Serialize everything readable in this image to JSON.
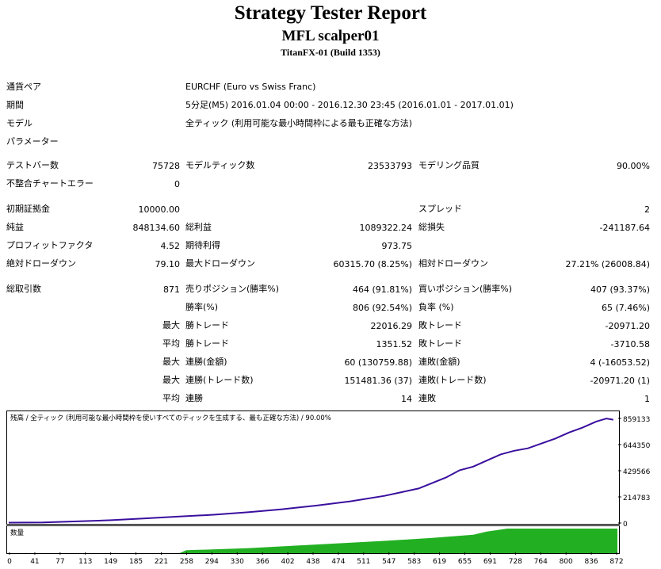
{
  "header": {
    "title": "Strategy Tester Report",
    "ea_name": "MFL scalper01",
    "broker": "TitanFX-01 (Build 1353)"
  },
  "info": {
    "symbol_label": "通貨ペア",
    "symbol_value": "EURCHF (Euro vs Swiss Franc)",
    "period_label": "期間",
    "period_value": "5分足(M5) 2016.01.04 00:00 - 2016.12.30 23:45 (2016.01.01 - 2017.01.01)",
    "model_label": "モデル",
    "model_value": "全ティック (利用可能な最小時間枠による最も正確な方法)",
    "params_label": "パラメーター"
  },
  "stats": {
    "bars_label": "テストバー数",
    "bars_value": "75728",
    "ticks_label": "モデルティック数",
    "ticks_value": "23533793",
    "quality_label": "モデリング品質",
    "quality_value": "90.00%",
    "mismatch_label": "不整合チャートエラー",
    "mismatch_value": "0",
    "deposit_label": "初期証拠金",
    "deposit_value": "10000.00",
    "spread_label": "スプレッド",
    "spread_value": "2",
    "net_label": "純益",
    "net_value": "848134.60",
    "gross_profit_label": "総利益",
    "gross_profit_value": "1089322.24",
    "gross_loss_label": "総損失",
    "gross_loss_value": "-241187.64",
    "pf_label": "プロフィットファクタ",
    "pf_value": "4.52",
    "expected_label": "期待利得",
    "expected_value": "973.75",
    "abs_dd_label": "絶対ドローダウン",
    "abs_dd_value": "79.10",
    "max_dd_label": "最大ドローダウン",
    "max_dd_value": "60315.70 (8.25%)",
    "rel_dd_label": "相対ドローダウン",
    "rel_dd_value": "27.21% (26008.84)",
    "total_trades_label": "総取引数",
    "total_trades_value": "871",
    "short_label": "売りポジション(勝率%)",
    "short_value": "464 (91.81%)",
    "long_label": "買いポジション(勝率%)",
    "long_value": "407 (93.37%)",
    "win_rate_label": "勝率(%)",
    "win_rate_value": "806 (92.54%)",
    "loss_rate_label": "負率 (%)",
    "loss_rate_value": "65 (7.46%)",
    "max_label": "最大",
    "avg_label": "平均",
    "largest_win_label": "勝トレード",
    "largest_win_value": "22016.29",
    "largest_loss_label": "敗トレード",
    "largest_loss_value": "-20971.20",
    "avg_win_label": "勝トレード",
    "avg_win_value": "1351.52",
    "avg_loss_label": "敗トレード",
    "avg_loss_value": "-3710.58",
    "cons_wins_label": "連勝(金額)",
    "cons_wins_value": "60 (130759.88)",
    "cons_losses_label": "連敗(金額)",
    "cons_losses_value": "4 (-16053.52)",
    "cons_profit_label": "連勝(トレード数)",
    "cons_profit_value": "151481.36 (37)",
    "cons_loss_label": "連敗(トレード数)",
    "cons_loss_value": "-20971.20 (1)",
    "avg_cons_wins_label": "連勝",
    "avg_cons_wins_value": "14",
    "avg_cons_losses_label": "連敗",
    "avg_cons_losses_value": "1"
  },
  "chart_data": [
    {
      "type": "line",
      "title": "残高 / 全ティック (利用可能な最小時間枠を使いすべてのティックを生成する、最も正確な方法) / 90.00%",
      "y_ticks": [
        "859133",
        "644350",
        "429566",
        "214783",
        "0"
      ],
      "ylim": [
        0,
        859133
      ],
      "xlim": [
        0,
        891
      ],
      "line_color": "#3a0f9e",
      "x": [
        0,
        50,
        100,
        150,
        200,
        250,
        300,
        350,
        400,
        450,
        500,
        550,
        600,
        640,
        660,
        680,
        700,
        720,
        740,
        760,
        780,
        800,
        820,
        840,
        860,
        875,
        885
      ],
      "y": [
        10000,
        12000,
        20000,
        30000,
        45000,
        60000,
        75000,
        95000,
        120000,
        150000,
        185000,
        230000,
        290000,
        380000,
        440000,
        470000,
        520000,
        570000,
        600000,
        620000,
        660000,
        700000,
        750000,
        790000,
        840000,
        865000,
        855000
      ]
    },
    {
      "type": "area",
      "title": "数量",
      "x_ticks": [
        "0",
        "41",
        "77",
        "113",
        "149",
        "185",
        "221",
        "258",
        "294",
        "330",
        "366",
        "402",
        "438",
        "474",
        "511",
        "547",
        "583",
        "619",
        "655",
        "691",
        "728",
        "764",
        "800",
        "836",
        "872"
      ],
      "fill_color": "#22b022",
      "x": [
        0,
        250,
        260,
        350,
        450,
        550,
        620,
        680,
        700,
        730,
        760,
        800,
        850,
        891
      ],
      "y": [
        0,
        0,
        0.12,
        0.2,
        0.35,
        0.5,
        0.62,
        0.75,
        0.88,
        1.0,
        1.0,
        1.0,
        1.0,
        1.0
      ]
    }
  ]
}
